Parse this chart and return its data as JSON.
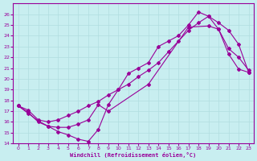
{
  "title": "",
  "xlabel": "Windchill (Refroidissement éolien,°C)",
  "bg_color": "#c8eef0",
  "grid_color": "#b0dde0",
  "line_color": "#990099",
  "xlim": [
    -0.5,
    23.5
  ],
  "ylim": [
    14,
    27
  ],
  "xticks": [
    0,
    1,
    2,
    3,
    4,
    5,
    6,
    7,
    8,
    9,
    10,
    11,
    12,
    13,
    14,
    15,
    16,
    17,
    18,
    19,
    20,
    21,
    22,
    23
  ],
  "yticks": [
    14,
    15,
    16,
    17,
    18,
    19,
    20,
    21,
    22,
    23,
    24,
    25,
    26
  ],
  "line1_x": [
    0,
    1,
    2,
    3,
    4,
    5,
    6,
    7,
    8,
    9,
    10,
    11,
    12,
    13,
    14,
    15,
    16,
    17,
    18,
    19,
    20,
    21,
    22,
    23
  ],
  "line1_y": [
    17.5,
    16.8,
    16.1,
    15.6,
    15.1,
    14.8,
    14.4,
    14.2,
    15.3,
    17.6,
    19.0,
    20.5,
    21.0,
    21.5,
    23.0,
    23.5,
    24.0,
    25.0,
    26.2,
    25.8,
    24.6,
    22.8,
    22.0,
    20.8
  ],
  "line2_x": [
    0,
    1,
    2,
    3,
    4,
    5,
    6,
    7,
    8,
    9,
    10,
    11,
    12,
    13,
    14,
    15,
    16,
    17,
    18,
    19,
    20,
    21,
    22,
    23
  ],
  "line2_y": [
    17.5,
    17.1,
    16.2,
    16.0,
    16.2,
    16.6,
    17.0,
    17.5,
    17.9,
    18.5,
    19.0,
    19.5,
    20.2,
    20.8,
    21.5,
    22.5,
    23.5,
    24.5,
    25.2,
    25.8,
    25.2,
    24.5,
    23.2,
    20.6
  ],
  "line3_x": [
    0,
    1,
    2,
    3,
    4,
    5,
    6,
    7,
    8,
    9,
    13,
    17,
    19,
    20,
    21,
    22,
    23
  ],
  "line3_y": [
    17.5,
    16.9,
    16.0,
    15.6,
    15.5,
    15.5,
    15.8,
    16.2,
    17.6,
    17.0,
    19.5,
    24.8,
    24.9,
    24.6,
    22.3,
    20.9,
    20.6
  ]
}
